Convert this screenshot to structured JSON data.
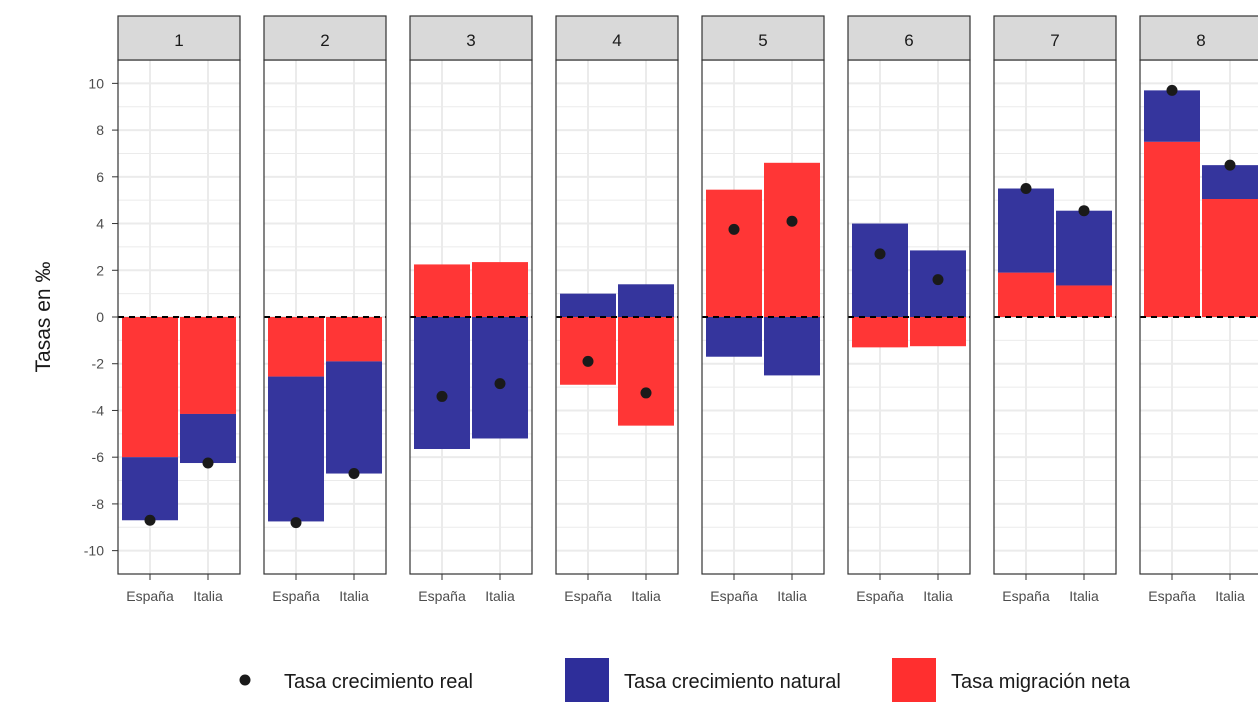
{
  "chart_data": {
    "type": "bar",
    "stacked": true,
    "ylabel": "Tasas en ‰",
    "ylim": [
      -11,
      11
    ],
    "yticks": [
      10,
      8,
      6,
      4,
      2,
      0,
      -2,
      -4,
      -6,
      -8,
      -10
    ],
    "ytick_labels": [
      "10",
      "8",
      "6",
      "4",
      "2",
      "0",
      "-2",
      "-4",
      "-6",
      "-8",
      "-10"
    ],
    "categories": [
      "España",
      "Italia"
    ],
    "facets": [
      {
        "label": "1",
        "natural": [
          -2.7,
          -2.1
        ],
        "migration": [
          -6.0,
          -4.15
        ],
        "real": [
          -8.7,
          -6.25
        ]
      },
      {
        "label": "2",
        "natural": [
          -6.2,
          -4.8
        ],
        "migration": [
          -2.55,
          -1.9
        ],
        "real": [
          -8.8,
          -6.7
        ]
      },
      {
        "label": "3",
        "natural": [
          -5.65,
          -5.2
        ],
        "migration": [
          2.25,
          2.35
        ],
        "real": [
          -3.4,
          -2.85
        ]
      },
      {
        "label": "4",
        "natural": [
          1.0,
          1.4
        ],
        "migration": [
          -2.9,
          -4.65
        ],
        "real": [
          -1.9,
          -3.25
        ]
      },
      {
        "label": "5",
        "natural": [
          -1.7,
          -2.5
        ],
        "migration": [
          5.45,
          6.6
        ],
        "real": [
          3.75,
          4.1
        ]
      },
      {
        "label": "6",
        "natural": [
          4.0,
          2.85
        ],
        "migration": [
          -1.3,
          -1.25
        ],
        "real": [
          2.7,
          1.6
        ]
      },
      {
        "label": "7",
        "natural": [
          3.6,
          3.2
        ],
        "migration": [
          1.9,
          1.35
        ],
        "real": [
          5.5,
          4.55
        ]
      },
      {
        "label": "8",
        "natural": [
          2.2,
          1.45
        ],
        "migration": [
          7.5,
          5.05
        ],
        "real": [
          9.7,
          6.5
        ]
      }
    ],
    "legend": {
      "placement": "bottom",
      "real": "Tasa crecimiento real",
      "natural": "Tasa crecimiento natural",
      "migration": "Tasa migración neta"
    },
    "colors": {
      "natural": "#2e2e9a",
      "migration": "#ff2f2f",
      "point": "#1a1a1a",
      "strip": "#d9d9d9",
      "grid": "#ebebeb"
    },
    "grid": true,
    "zero_line": "dashed"
  }
}
